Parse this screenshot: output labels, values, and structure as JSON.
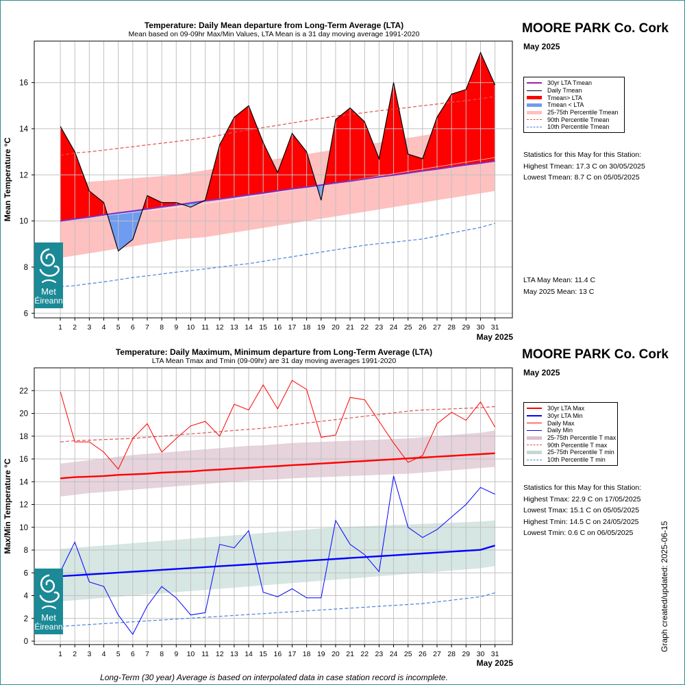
{
  "station": "MOORE PARK Co. Cork",
  "month": "May 2025",
  "footnote": "Long-Term (30 year) Average is based on interpolated data in case station record is incomplete.",
  "updated": "Graph created/updated:  2025-06-15",
  "logo": {
    "line1": "Met",
    "line2": "Éireann",
    "icon": "met-eireann-swirl-icon"
  },
  "colors": {
    "red": "#ff0000",
    "blue": "#0000ff",
    "lightblue": "#6f9cf0",
    "pink": "#ffc0c0",
    "purple": "#a020a0",
    "mauve": "#e6d3dc",
    "sage": "#d6e6e3",
    "teal": "#1b8a96"
  },
  "top": {
    "legend": [
      {
        "label": "30yr LTA Tmean",
        "style": "purple-line"
      },
      {
        "label": "Daily Tmean",
        "style": "black-line"
      },
      {
        "label": "Tmean> LTA",
        "style": "red-thick"
      },
      {
        "label": "Tmean < LTA",
        "style": "blue-thick"
      },
      {
        "label": "25-75th Percentile Tmean",
        "style": "pink-thick"
      },
      {
        "label": "90th Percentile Tmean",
        "style": "red-dash"
      },
      {
        "label": "10th Percentile Tmean",
        "style": "blue-dash"
      }
    ],
    "stats_title": "Statistics for this May for this Station:",
    "stats": [
      "Highest Tmean: 17.3 C on 30/05/2025",
      "Lowest Tmean: 8.7 C on 05/05/2025"
    ],
    "lta_lines": [
      "LTA May Mean: 11.4 C",
      "May 2025 Mean: 13 C"
    ]
  },
  "bottom": {
    "legend": [
      {
        "label": "30yr LTA Max",
        "style": "red-thick-line"
      },
      {
        "label": "30yr LTA Min",
        "style": "blue-thick-line"
      },
      {
        "label": "Daily Max",
        "style": "red-line"
      },
      {
        "label": "Daily Min",
        "style": "blue-line"
      },
      {
        "label": "25-75th Percentile T max",
        "style": "mauve-thick"
      },
      {
        "label": "90th Percentile T max",
        "style": "red-dash"
      },
      {
        "label": "25-75th Percentile T min",
        "style": "sage-thick"
      },
      {
        "label": "10th Percentile T min",
        "style": "blue-dash"
      }
    ],
    "stats_title": "Statistics for this May for this Station:",
    "stats": [
      "Highest Tmax: 22.9 C on 17/05/2025",
      "Lowest Tmax: 15.1 C on 05/05/2025",
      "Highest Tmin: 14.5 C on 24/05/2025",
      "Lowest Tmin: 0.6 C on 06/05/2025"
    ]
  },
  "chart_data": [
    {
      "type": "line",
      "title": "Temperature: Daily Mean departure from Long-Term Average (LTA)",
      "subtitle": "Mean based on 09-09hr Max/Min Values, LTA Mean is a 31 day moving average 1991-2020",
      "ylabel": "Mean Temperature °C",
      "xlabel": "May 2025",
      "x": [
        1,
        2,
        3,
        4,
        5,
        6,
        7,
        8,
        9,
        10,
        11,
        12,
        13,
        14,
        15,
        16,
        17,
        18,
        19,
        20,
        21,
        22,
        23,
        24,
        25,
        26,
        27,
        28,
        29,
        30,
        31
      ],
      "xlim": [
        -0.8,
        32.2
      ],
      "ylim": [
        5.8,
        17.8
      ],
      "yticks": [
        6,
        8,
        10,
        12,
        14,
        16
      ],
      "grid": true,
      "series": [
        {
          "name": "Daily Tmean",
          "values": [
            14.1,
            13.0,
            11.3,
            10.8,
            8.7,
            9.2,
            11.1,
            10.8,
            10.8,
            10.6,
            10.9,
            13.3,
            14.5,
            15.0,
            13.4,
            12.1,
            13.8,
            13.0,
            10.9,
            14.4,
            14.9,
            14.3,
            12.7,
            16.0,
            12.9,
            12.7,
            14.5,
            15.5,
            15.7,
            17.3,
            15.9
          ]
        },
        {
          "name": "30yr LTA Tmean",
          "values": [
            10.0,
            10.09,
            10.17,
            10.26,
            10.35,
            10.43,
            10.52,
            10.61,
            10.69,
            10.78,
            10.87,
            10.95,
            11.04,
            11.13,
            11.21,
            11.3,
            11.39,
            11.47,
            11.56,
            11.65,
            11.73,
            11.82,
            11.91,
            11.99,
            12.08,
            12.17,
            12.25,
            12.34,
            12.43,
            12.51,
            12.6
          ]
        },
        {
          "name": "25-75th Percentile Tmean",
          "lower": [
            8.4,
            8.5,
            8.6,
            8.7,
            8.8,
            8.9,
            9.0,
            9.1,
            9.2,
            9.25,
            9.3,
            9.4,
            9.5,
            9.6,
            9.7,
            9.8,
            9.9,
            10.0,
            10.1,
            10.2,
            10.3,
            10.4,
            10.5,
            10.6,
            10.7,
            10.8,
            10.9,
            11.0,
            11.1,
            11.2,
            11.3
          ],
          "upper": [
            11.6,
            11.65,
            11.7,
            11.75,
            11.8,
            11.85,
            11.9,
            11.95,
            12.0,
            12.1,
            12.2,
            12.3,
            12.4,
            12.5,
            12.6,
            12.7,
            12.8,
            12.9,
            13.0,
            13.1,
            13.2,
            13.3,
            13.4,
            13.5,
            13.6,
            13.7,
            13.8,
            13.9,
            14.0,
            14.1,
            14.2
          ]
        },
        {
          "name": "90th Percentile Tmean",
          "values": [
            12.85,
            12.95,
            13.0,
            13.07,
            13.15,
            13.22,
            13.3,
            13.37,
            13.45,
            13.52,
            13.6,
            13.72,
            13.85,
            13.95,
            14.05,
            14.15,
            14.25,
            14.35,
            14.45,
            14.55,
            14.62,
            14.7,
            14.78,
            14.85,
            14.92,
            15.0,
            15.07,
            15.15,
            15.22,
            15.3,
            15.4
          ]
        },
        {
          "name": "10th Percentile Tmean",
          "values": [
            7.15,
            7.2,
            7.28,
            7.36,
            7.45,
            7.55,
            7.62,
            7.7,
            7.78,
            7.85,
            7.92,
            8.0,
            8.08,
            8.15,
            8.25,
            8.35,
            8.45,
            8.55,
            8.65,
            8.75,
            8.85,
            8.95,
            9.02,
            9.08,
            9.15,
            9.22,
            9.35,
            9.48,
            9.6,
            9.72,
            9.9
          ]
        }
      ]
    },
    {
      "type": "line",
      "title": "Temperature: Daily Maximum, Minimum departure from Long-Term Average (LTA)",
      "subtitle": "LTA Mean Tmax and Tmin (09-09hr) are 31 day moving averages 1991-2020",
      "ylabel": "Max/Min Temperature °C",
      "xlabel": "May 2025",
      "x": [
        1,
        2,
        3,
        4,
        5,
        6,
        7,
        8,
        9,
        10,
        11,
        12,
        13,
        14,
        15,
        16,
        17,
        18,
        19,
        20,
        21,
        22,
        23,
        24,
        25,
        26,
        27,
        28,
        29,
        30,
        31
      ],
      "xlim": [
        -0.8,
        32.2
      ],
      "ylim": [
        -0.3,
        24.0
      ],
      "yticks": [
        0,
        2,
        4,
        6,
        8,
        10,
        12,
        14,
        16,
        18,
        20,
        22
      ],
      "grid": true,
      "series": [
        {
          "name": "Daily Max",
          "values": [
            21.9,
            17.5,
            17.5,
            16.6,
            15.1,
            17.8,
            19.1,
            16.6,
            17.8,
            18.9,
            19.3,
            18.0,
            20.8,
            20.3,
            22.5,
            20.4,
            22.9,
            22.1,
            17.9,
            18.1,
            21.4,
            21.2,
            19.3,
            17.4,
            15.7,
            16.3,
            19.1,
            20.1,
            19.4,
            21.0,
            18.8
          ]
        },
        {
          "name": "Daily Min",
          "values": [
            6.1,
            8.7,
            5.2,
            4.8,
            2.3,
            0.6,
            3.1,
            4.8,
            3.8,
            2.3,
            2.5,
            8.5,
            8.2,
            9.7,
            4.3,
            3.9,
            4.6,
            3.8,
            3.8,
            10.6,
            8.5,
            7.6,
            6.1,
            14.5,
            10.0,
            9.1,
            9.8,
            10.9,
            12.0,
            13.5,
            12.9
          ]
        },
        {
          "name": "30yr LTA Max",
          "values": [
            14.3,
            14.4,
            14.45,
            14.5,
            14.6,
            14.65,
            14.7,
            14.8,
            14.85,
            14.9,
            15.0,
            15.07,
            15.15,
            15.22,
            15.3,
            15.37,
            15.45,
            15.52,
            15.6,
            15.67,
            15.75,
            15.82,
            15.9,
            15.97,
            16.05,
            16.12,
            16.2,
            16.27,
            16.35,
            16.42,
            16.5
          ]
        },
        {
          "name": "30yr LTA Min",
          "values": [
            5.7,
            5.78,
            5.86,
            5.94,
            6.02,
            6.1,
            6.18,
            6.26,
            6.34,
            6.42,
            6.5,
            6.58,
            6.66,
            6.74,
            6.82,
            6.9,
            6.98,
            7.06,
            7.14,
            7.22,
            7.3,
            7.38,
            7.46,
            7.54,
            7.62,
            7.7,
            7.78,
            7.86,
            7.94,
            8.02,
            8.4
          ]
        },
        {
          "name": "25-75th Percentile T max",
          "lower": [
            12.7,
            12.85,
            13.0,
            13.1,
            13.2,
            13.3,
            13.4,
            13.5,
            13.6,
            13.7,
            13.8,
            13.9,
            14.0,
            14.1,
            14.15,
            14.2,
            14.3,
            14.35,
            14.4,
            14.45,
            14.5,
            14.55,
            14.6,
            14.65,
            14.7,
            14.8,
            14.9,
            15.0,
            15.1,
            15.2,
            15.3
          ],
          "upper": [
            15.6,
            15.75,
            15.9,
            16.05,
            16.2,
            16.35,
            16.45,
            16.55,
            16.65,
            16.75,
            16.85,
            16.95,
            17.05,
            17.15,
            17.2,
            17.3,
            17.4,
            17.45,
            17.5,
            17.55,
            17.6,
            17.65,
            17.7,
            17.75,
            17.8,
            17.9,
            18.0,
            18.1,
            18.2,
            18.3,
            18.5
          ]
        },
        {
          "name": "90th Percentile T max",
          "values": [
            17.5,
            17.6,
            17.65,
            17.7,
            17.75,
            17.8,
            17.9,
            18.0,
            18.1,
            18.2,
            18.3,
            18.4,
            18.5,
            18.6,
            18.7,
            18.85,
            19.0,
            19.15,
            19.3,
            19.45,
            19.6,
            19.75,
            19.9,
            20.05,
            20.2,
            20.3,
            20.35,
            20.4,
            20.45,
            20.5,
            20.6
          ]
        },
        {
          "name": "25-75th Percentile T min",
          "lower": [
            3.5,
            3.6,
            3.7,
            3.8,
            3.9,
            4.0,
            4.1,
            4.2,
            4.3,
            4.4,
            4.5,
            4.6,
            4.7,
            4.8,
            4.9,
            5.0,
            5.1,
            5.2,
            5.3,
            5.4,
            5.5,
            5.6,
            5.7,
            5.8,
            5.9,
            6.0,
            6.1,
            6.2,
            6.3,
            6.4,
            6.6
          ],
          "upper": [
            8.1,
            8.2,
            8.3,
            8.4,
            8.5,
            8.6,
            8.7,
            8.8,
            8.9,
            9.0,
            9.1,
            9.2,
            9.3,
            9.4,
            9.5,
            9.6,
            9.7,
            9.8,
            9.9,
            10.0,
            10.05,
            10.1,
            10.15,
            10.2,
            10.25,
            10.3,
            10.35,
            10.4,
            10.45,
            10.5,
            10.6
          ]
        },
        {
          "name": "10th Percentile T min",
          "values": [
            1.3,
            1.38,
            1.46,
            1.54,
            1.62,
            1.7,
            1.78,
            1.86,
            1.94,
            2.02,
            2.1,
            2.18,
            2.26,
            2.34,
            2.42,
            2.5,
            2.58,
            2.66,
            2.74,
            2.82,
            2.9,
            2.98,
            3.06,
            3.14,
            3.22,
            3.3,
            3.45,
            3.6,
            3.75,
            3.9,
            4.25
          ]
        }
      ]
    }
  ]
}
